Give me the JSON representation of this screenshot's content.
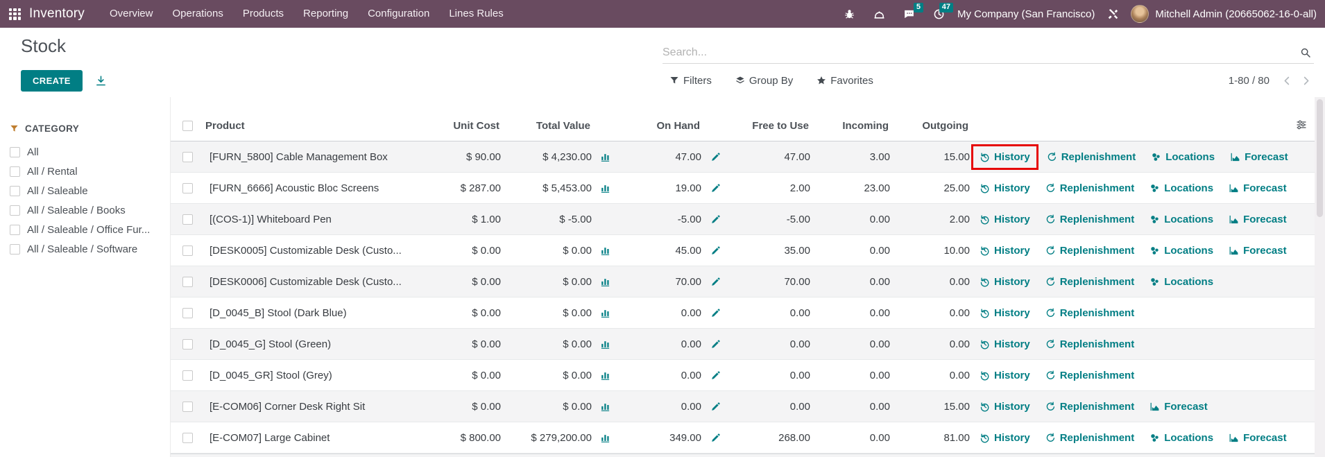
{
  "nav": {
    "brand": "Inventory",
    "items": [
      "Overview",
      "Operations",
      "Products",
      "Reporting",
      "Configuration",
      "Lines Rules"
    ],
    "messages_badge": "5",
    "activities_badge": "47",
    "company": "My Company (San Francisco)",
    "user": "Mitchell Admin (20665062-16-0-all)"
  },
  "control": {
    "title": "Stock",
    "create_label": "CREATE",
    "search_placeholder": "Search...",
    "filters_label": "Filters",
    "groupby_label": "Group By",
    "favorites_label": "Favorites",
    "pager_text": "1-80 / 80"
  },
  "sidebar": {
    "heading": "CATEGORY",
    "items": [
      {
        "label": "All",
        "checked": false
      },
      {
        "label": "All / Rental",
        "checked": false
      },
      {
        "label": "All / Saleable",
        "checked": false
      },
      {
        "label": "All / Saleable / Books",
        "checked": false
      },
      {
        "label": "All / Saleable / Office Fur...",
        "checked": false
      },
      {
        "label": "All / Saleable / Software",
        "checked": false
      }
    ]
  },
  "table": {
    "columns": [
      "Product",
      "Unit Cost",
      "Total Value",
      "On Hand",
      "Free to Use",
      "Incoming",
      "Outgoing"
    ],
    "action_labels": {
      "history": "History",
      "replenishment": "Replenishment",
      "locations": "Locations",
      "forecast": "Forecast"
    },
    "rows": [
      {
        "product": "[FURN_5800] Cable Management Box",
        "unit_cost": "$ 90.00",
        "total_value": "$ 4,230.00",
        "has_chart": true,
        "on_hand": "47.00",
        "free_to_use": "47.00",
        "incoming": "3.00",
        "outgoing": "15.00",
        "actions": [
          "history",
          "replenishment",
          "locations",
          "forecast"
        ],
        "history_highlighted": true
      },
      {
        "product": "[FURN_6666] Acoustic Bloc Screens",
        "unit_cost": "$ 287.00",
        "total_value": "$ 5,453.00",
        "has_chart": true,
        "on_hand": "19.00",
        "free_to_use": "2.00",
        "incoming": "23.00",
        "outgoing": "25.00",
        "actions": [
          "history",
          "replenishment",
          "locations",
          "forecast"
        ],
        "history_highlighted": false
      },
      {
        "product": "[(COS-1)] Whiteboard Pen",
        "unit_cost": "$ 1.00",
        "total_value": "$ -5.00",
        "has_chart": false,
        "on_hand": "-5.00",
        "free_to_use": "-5.00",
        "incoming": "0.00",
        "outgoing": "2.00",
        "actions": [
          "history",
          "replenishment",
          "locations",
          "forecast"
        ],
        "history_highlighted": false
      },
      {
        "product": "[DESK0005] Customizable Desk (Custo...",
        "unit_cost": "$ 0.00",
        "total_value": "$ 0.00",
        "has_chart": true,
        "on_hand": "45.00",
        "free_to_use": "35.00",
        "incoming": "0.00",
        "outgoing": "10.00",
        "actions": [
          "history",
          "replenishment",
          "locations",
          "forecast"
        ],
        "history_highlighted": false
      },
      {
        "product": "[DESK0006] Customizable Desk (Custo...",
        "unit_cost": "$ 0.00",
        "total_value": "$ 0.00",
        "has_chart": true,
        "on_hand": "70.00",
        "free_to_use": "70.00",
        "incoming": "0.00",
        "outgoing": "0.00",
        "actions": [
          "history",
          "replenishment",
          "locations"
        ],
        "history_highlighted": false
      },
      {
        "product": "[D_0045_B] Stool (Dark Blue)",
        "unit_cost": "$ 0.00",
        "total_value": "$ 0.00",
        "has_chart": true,
        "on_hand": "0.00",
        "free_to_use": "0.00",
        "incoming": "0.00",
        "outgoing": "0.00",
        "actions": [
          "history",
          "replenishment"
        ],
        "history_highlighted": false
      },
      {
        "product": "[D_0045_G] Stool (Green)",
        "unit_cost": "$ 0.00",
        "total_value": "$ 0.00",
        "has_chart": true,
        "on_hand": "0.00",
        "free_to_use": "0.00",
        "incoming": "0.00",
        "outgoing": "0.00",
        "actions": [
          "history",
          "replenishment"
        ],
        "history_highlighted": false
      },
      {
        "product": "[D_0045_GR] Stool (Grey)",
        "unit_cost": "$ 0.00",
        "total_value": "$ 0.00",
        "has_chart": true,
        "on_hand": "0.00",
        "free_to_use": "0.00",
        "incoming": "0.00",
        "outgoing": "0.00",
        "actions": [
          "history",
          "replenishment"
        ],
        "history_highlighted": false
      },
      {
        "product": "[E-COM06] Corner Desk Right Sit",
        "unit_cost": "$ 0.00",
        "total_value": "$ 0.00",
        "has_chart": true,
        "on_hand": "0.00",
        "free_to_use": "0.00",
        "incoming": "0.00",
        "outgoing": "15.00",
        "actions": [
          "history",
          "replenishment",
          "forecast"
        ],
        "history_highlighted": false
      },
      {
        "product": "[E-COM07] Large Cabinet",
        "unit_cost": "$ 800.00",
        "total_value": "$ 279,200.00",
        "has_chart": true,
        "on_hand": "349.00",
        "free_to_use": "268.00",
        "incoming": "0.00",
        "outgoing": "81.00",
        "actions": [
          "history",
          "replenishment",
          "locations",
          "forecast"
        ],
        "history_highlighted": false
      }
    ]
  },
  "icons": {
    "apps-grid-icon": "3x3-grid",
    "bug-icon": "bug",
    "dial-icon": "rotary-dial",
    "chat-icon": "speech-bubble",
    "clock-icon": "clock",
    "tools-icon": "crossed-tools",
    "search-icon": "magnifier",
    "download-icon": "arrow-down-to-line",
    "filter-icon": "funnel",
    "groupby-icon": "layers",
    "favorites-icon": "star",
    "prev-icon": "chevron-left",
    "next-icon": "chevron-right",
    "category-filter-icon": "funnel",
    "optional-columns-icon": "sliders",
    "valuation-chart-icon": "bar-chart",
    "edit-icon": "pencil",
    "history-icon": "clock-ccw-arrow",
    "replenishment-icon": "refresh-arrow",
    "locations-icon": "circle-cluster",
    "forecast-icon": "area-chart"
  },
  "colors": {
    "nav_bg": "#694b60",
    "accent": "#017e84",
    "highlight_box": "#e60505",
    "category_icon": "#bf7e2f",
    "row_stripe": "#f4f4f5"
  }
}
